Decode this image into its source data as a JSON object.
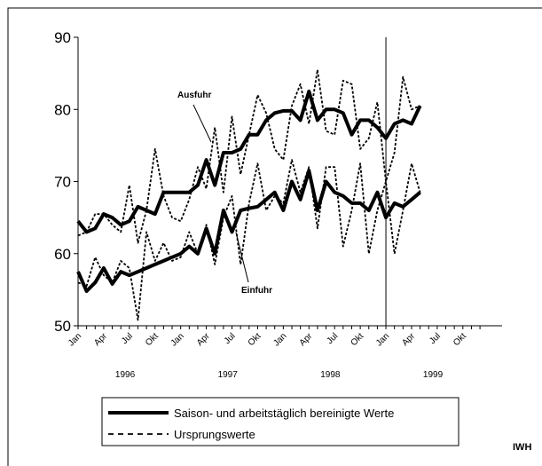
{
  "chart_data": {
    "type": "line",
    "categories": [
      "Jan",
      null,
      null,
      "Apr",
      null,
      null,
      "Jul",
      null,
      null,
      "Okt",
      null,
      null,
      "Jan",
      null,
      null,
      "Apr",
      null,
      null,
      "Jul",
      null,
      null,
      "Okt",
      null,
      null,
      "Jan",
      null,
      null,
      "Apr",
      null,
      null,
      "Jul",
      null,
      null,
      "Okt",
      null,
      null,
      "Jan",
      null,
      null,
      "Apr",
      null,
      null,
      "Jul",
      null,
      null,
      "Okt",
      null,
      null
    ],
    "years": [
      "1996",
      "1997",
      "1998",
      "1999"
    ],
    "ylim": [
      50,
      90
    ],
    "yticks": [
      50,
      60,
      70,
      80,
      90
    ],
    "color": "#000000",
    "reference_line": 36,
    "legend": {
      "adjusted": "Saison- und arbeitstäglich bereinigte Werte",
      "original": "Ursprungswerte"
    },
    "groups": [
      {
        "name": "Ausfuhr",
        "adjusted": [
          64.5,
          63,
          63.5,
          65.5,
          65,
          64,
          64.5,
          66.5,
          66,
          65.5,
          68.5,
          68.5,
          68.5,
          68.5,
          69.5,
          73,
          69.5,
          74,
          74,
          74.5,
          76.5,
          76.5,
          78.5,
          79.5,
          79.8,
          79.8,
          78.5,
          82.5,
          78.5,
          80,
          80,
          79.5,
          76.5,
          78.5,
          78.5,
          77.5,
          76,
          78,
          78.5,
          78,
          80.5,
          null,
          null,
          null,
          null,
          null,
          null,
          null
        ],
        "original": [
          62.5,
          63,
          65.5,
          65.5,
          64,
          63,
          69.5,
          61.5,
          66,
          74.5,
          68,
          65,
          64.5,
          67.5,
          72,
          69,
          77.5,
          68.5,
          79,
          71,
          76.5,
          82,
          79.5,
          74.5,
          73,
          80.5,
          83.5,
          78,
          85.5,
          77,
          76.5,
          84,
          83.5,
          74.5,
          76,
          81,
          70,
          74,
          84.5,
          80,
          80.5,
          null,
          null,
          null,
          null,
          null,
          null,
          null
        ]
      },
      {
        "name": "Einfuhr",
        "adjusted": [
          57.5,
          54.8,
          56,
          58,
          55.8,
          57.5,
          57,
          57.5,
          58,
          58.5,
          59,
          59.5,
          60,
          61,
          60,
          63.5,
          60,
          66,
          63,
          66,
          66.3,
          66.5,
          67.5,
          68.5,
          66,
          70,
          67.5,
          71.5,
          66,
          70,
          68.5,
          68,
          67,
          67,
          66,
          68.5,
          65,
          67,
          66.5,
          67.5,
          68.5,
          null,
          null,
          null,
          null,
          null,
          null,
          null
        ],
        "original": [
          56,
          55.5,
          59.5,
          57,
          56,
          59,
          58,
          50.8,
          63,
          59,
          61.5,
          59,
          59.5,
          63,
          60,
          64,
          58.5,
          65,
          68,
          58.5,
          67,
          72.5,
          66,
          68,
          67,
          73,
          68.5,
          72,
          63.5,
          72,
          72,
          61,
          66,
          72.5,
          60,
          66,
          70,
          60,
          66,
          72.5,
          68.5,
          null,
          null,
          null,
          null,
          null,
          null,
          null
        ]
      }
    ],
    "source": "IWH"
  }
}
